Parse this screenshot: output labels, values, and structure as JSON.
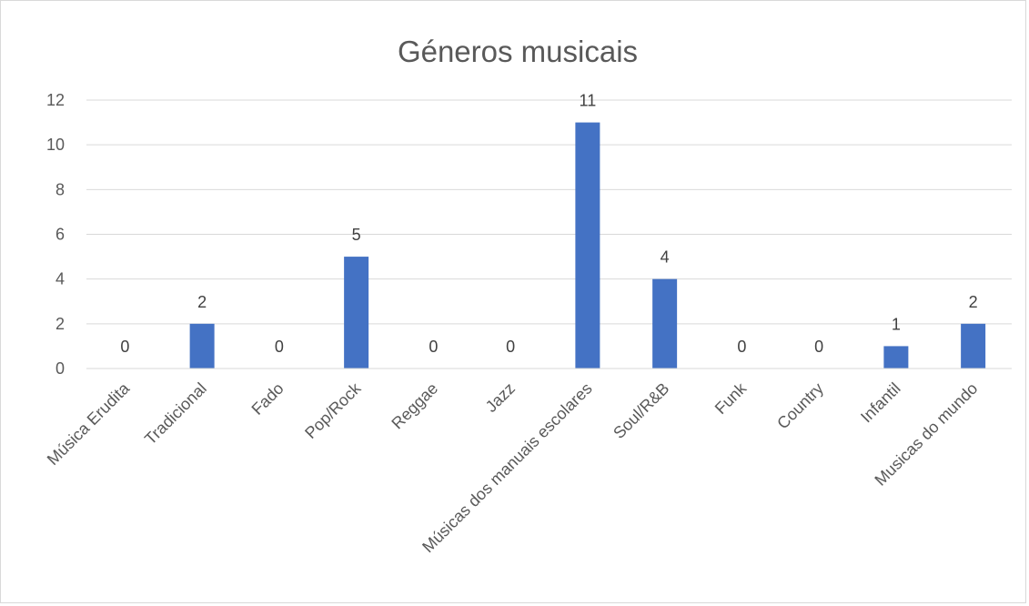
{
  "chart_data": {
    "type": "bar",
    "title": "Géneros musicais",
    "categories": [
      "Música Erudita",
      "Tradicional",
      "Fado",
      "Pop/Rock",
      "Reggae",
      "Jazz",
      "Músicas dos manuais escolares",
      "Soul/R&B",
      "Funk",
      "Country",
      "Infantil",
      "Musicas do mundo"
    ],
    "values": [
      0,
      2,
      0,
      5,
      0,
      0,
      11,
      4,
      0,
      0,
      1,
      2
    ],
    "data_labels": [
      "0",
      "2",
      "0",
      "5",
      "0",
      "0",
      "11",
      "4",
      "0",
      "0",
      "1",
      "2"
    ],
    "yticks": [
      "0",
      "2",
      "4",
      "6",
      "8",
      "10",
      "12"
    ],
    "ylim": [
      0,
      12
    ],
    "grid": true,
    "legend": "none",
    "bar_color": "#4472c4"
  }
}
